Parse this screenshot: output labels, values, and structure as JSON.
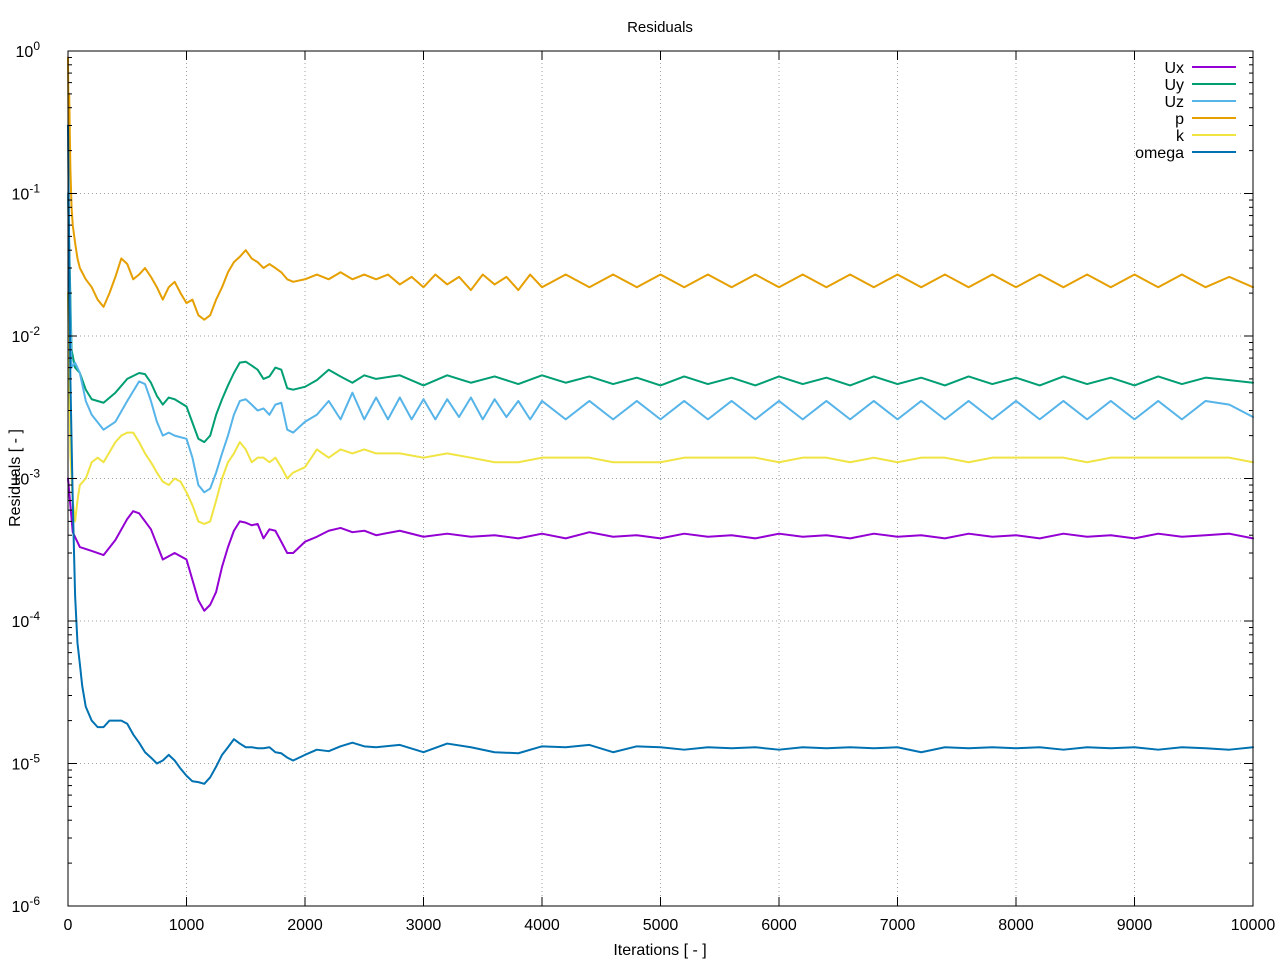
{
  "chart_data": {
    "type": "line",
    "title": "Residuals",
    "xlabel": "Iterations [ - ]",
    "ylabel": "Residuals [ - ]",
    "xlim": [
      0,
      10000
    ],
    "ylim": [
      1e-06,
      1
    ],
    "yscale": "log",
    "grid": true,
    "legend": "top-right",
    "x_ticks": [
      "0",
      "1000",
      "2000",
      "3000",
      "4000",
      "5000",
      "6000",
      "7000",
      "8000",
      "9000",
      "10000"
    ],
    "y_ticks": [
      {
        "base": "10",
        "exp": "0"
      },
      {
        "base": "10",
        "exp": "-1"
      },
      {
        "base": "10",
        "exp": "-2"
      },
      {
        "base": "10",
        "exp": "-3"
      },
      {
        "base": "10",
        "exp": "-4"
      },
      {
        "base": "10",
        "exp": "-5"
      },
      {
        "base": "10",
        "exp": "-6"
      }
    ],
    "series": [
      {
        "name": "Ux",
        "color": "#9400d3",
        "x": [
          0,
          40,
          100,
          200,
          300,
          400,
          500,
          550,
          600,
          700,
          800,
          900,
          1000,
          1100,
          1150,
          1200,
          1250,
          1300,
          1350,
          1400,
          1450,
          1500,
          1550,
          1600,
          1650,
          1700,
          1750,
          1800,
          1850,
          1900,
          2000,
          2100,
          2200,
          2300,
          2400,
          2500,
          2600,
          2800,
          3000,
          3200,
          3400,
          3600,
          3800,
          4000,
          4200,
          4400,
          4600,
          4800,
          5000,
          5200,
          5400,
          5600,
          5800,
          6000,
          6200,
          6400,
          6600,
          6800,
          7000,
          7200,
          7400,
          7600,
          7800,
          8000,
          8200,
          8400,
          8600,
          8800,
          9000,
          9200,
          9400,
          9600,
          9800,
          10000
        ],
        "y": [
          0.001,
          0.00042,
          0.00033,
          0.00031,
          0.00029,
          0.00037,
          0.00052,
          0.00059,
          0.00057,
          0.00044,
          0.00027,
          0.0003,
          0.00027,
          0.00014,
          0.000118,
          0.00013,
          0.00016,
          0.00024,
          0.00033,
          0.00043,
          0.0005,
          0.00049,
          0.00047,
          0.00048,
          0.00038,
          0.00044,
          0.00043,
          0.00036,
          0.0003,
          0.0003,
          0.00036,
          0.00039,
          0.00043,
          0.00045,
          0.00042,
          0.00043,
          0.0004,
          0.00043,
          0.00039,
          0.00041,
          0.00039,
          0.0004,
          0.00038,
          0.00041,
          0.00038,
          0.00042,
          0.00039,
          0.0004,
          0.00038,
          0.00041,
          0.00039,
          0.0004,
          0.00038,
          0.00041,
          0.00039,
          0.0004,
          0.00038,
          0.00041,
          0.00039,
          0.0004,
          0.00038,
          0.00041,
          0.00039,
          0.0004,
          0.00038,
          0.00041,
          0.00039,
          0.0004,
          0.00038,
          0.00041,
          0.00039,
          0.0004,
          0.00041,
          0.00038
        ]
      },
      {
        "name": "Uy",
        "color": "#009e73",
        "x": [
          0,
          30,
          60,
          100,
          150,
          200,
          300,
          400,
          500,
          600,
          650,
          700,
          750,
          800,
          850,
          900,
          1000,
          1100,
          1150,
          1200,
          1250,
          1300,
          1350,
          1400,
          1450,
          1500,
          1550,
          1600,
          1650,
          1700,
          1750,
          1800,
          1850,
          1900,
          2000,
          2100,
          2200,
          2300,
          2400,
          2500,
          2600,
          2800,
          3000,
          3200,
          3400,
          3600,
          3800,
          4000,
          4200,
          4400,
          4600,
          4800,
          5000,
          5200,
          5400,
          5600,
          5800,
          6000,
          6200,
          6400,
          6600,
          6800,
          7000,
          7200,
          7400,
          7600,
          7800,
          8000,
          8200,
          8400,
          8600,
          8800,
          9000,
          9200,
          9400,
          9600,
          9800,
          10000
        ],
        "y": [
          0.1,
          0.008,
          0.006,
          0.0055,
          0.0042,
          0.0036,
          0.0034,
          0.004,
          0.005,
          0.0055,
          0.0054,
          0.0047,
          0.0038,
          0.0033,
          0.0037,
          0.0036,
          0.0032,
          0.0019,
          0.0018,
          0.002,
          0.0028,
          0.0036,
          0.0045,
          0.0055,
          0.0065,
          0.0066,
          0.0062,
          0.0058,
          0.005,
          0.0052,
          0.006,
          0.0058,
          0.0043,
          0.0042,
          0.0044,
          0.0049,
          0.0058,
          0.0052,
          0.0047,
          0.0053,
          0.005,
          0.0053,
          0.0045,
          0.0053,
          0.0047,
          0.0052,
          0.0046,
          0.0053,
          0.0047,
          0.0052,
          0.0046,
          0.0051,
          0.0045,
          0.0052,
          0.0046,
          0.0051,
          0.0045,
          0.0052,
          0.0046,
          0.0051,
          0.0045,
          0.0052,
          0.0046,
          0.0051,
          0.0045,
          0.0052,
          0.0046,
          0.0051,
          0.0045,
          0.0052,
          0.0046,
          0.0051,
          0.0045,
          0.0052,
          0.0046,
          0.0051,
          0.0049,
          0.0047
        ]
      },
      {
        "name": "Uz",
        "color": "#56b4e9",
        "x": [
          0,
          30,
          60,
          100,
          150,
          200,
          300,
          400,
          500,
          600,
          650,
          700,
          750,
          800,
          850,
          900,
          1000,
          1050,
          1100,
          1150,
          1200,
          1250,
          1300,
          1350,
          1400,
          1450,
          1500,
          1550,
          1600,
          1650,
          1700,
          1750,
          1800,
          1850,
          1900,
          2000,
          2100,
          2200,
          2300,
          2400,
          2500,
          2600,
          2700,
          2800,
          2900,
          3000,
          3100,
          3200,
          3300,
          3400,
          3500,
          3600,
          3700,
          3800,
          3900,
          4000,
          4200,
          4400,
          4600,
          4800,
          5000,
          5200,
          5400,
          5600,
          5800,
          6000,
          6200,
          6400,
          6600,
          6800,
          7000,
          7200,
          7400,
          7600,
          7800,
          8000,
          8200,
          8400,
          8600,
          8800,
          9000,
          9200,
          9400,
          9600,
          9800,
          10000
        ],
        "y": [
          0.1,
          0.006,
          0.0065,
          0.0055,
          0.0035,
          0.0028,
          0.0022,
          0.0025,
          0.0035,
          0.0048,
          0.0046,
          0.0035,
          0.0025,
          0.002,
          0.0021,
          0.002,
          0.0019,
          0.0014,
          0.0009,
          0.0008,
          0.00085,
          0.0011,
          0.0015,
          0.002,
          0.0028,
          0.0035,
          0.0036,
          0.0033,
          0.003,
          0.0031,
          0.0028,
          0.0033,
          0.0034,
          0.0022,
          0.0021,
          0.0025,
          0.0028,
          0.0035,
          0.0026,
          0.004,
          0.0026,
          0.0037,
          0.0026,
          0.0037,
          0.0026,
          0.0036,
          0.0026,
          0.0036,
          0.0027,
          0.0037,
          0.0026,
          0.0036,
          0.0027,
          0.0035,
          0.0026,
          0.0035,
          0.0026,
          0.0035,
          0.0026,
          0.0035,
          0.0026,
          0.0035,
          0.0026,
          0.0035,
          0.0026,
          0.0035,
          0.0026,
          0.0035,
          0.0026,
          0.0035,
          0.0026,
          0.0035,
          0.0026,
          0.0035,
          0.0026,
          0.0035,
          0.0026,
          0.0035,
          0.0026,
          0.0035,
          0.0026,
          0.0035,
          0.0026,
          0.0035,
          0.0033,
          0.0027
        ]
      },
      {
        "name": "p",
        "color": "#e69f00",
        "x": [
          0,
          5,
          10,
          20,
          30,
          40,
          60,
          80,
          100,
          150,
          200,
          250,
          300,
          350,
          400,
          450,
          500,
          550,
          600,
          650,
          700,
          750,
          800,
          850,
          900,
          950,
          1000,
          1050,
          1100,
          1150,
          1200,
          1250,
          1300,
          1350,
          1400,
          1450,
          1500,
          1550,
          1600,
          1650,
          1700,
          1750,
          1800,
          1850,
          1900,
          2000,
          2100,
          2200,
          2300,
          2400,
          2500,
          2600,
          2700,
          2800,
          2900,
          3000,
          3100,
          3200,
          3300,
          3400,
          3500,
          3600,
          3700,
          3800,
          3900,
          4000,
          4200,
          4400,
          4600,
          4800,
          5000,
          5200,
          5400,
          5600,
          5800,
          6000,
          6200,
          6400,
          6600,
          6800,
          7000,
          7200,
          7400,
          7600,
          7800,
          8000,
          8200,
          8400,
          8600,
          8800,
          9000,
          9200,
          9400,
          9600,
          9800,
          10000
        ],
        "y": [
          0.9,
          0.3,
          0.5,
          0.15,
          0.08,
          0.06,
          0.045,
          0.035,
          0.03,
          0.025,
          0.022,
          0.018,
          0.016,
          0.02,
          0.026,
          0.035,
          0.032,
          0.025,
          0.027,
          0.03,
          0.026,
          0.022,
          0.018,
          0.022,
          0.024,
          0.02,
          0.017,
          0.018,
          0.014,
          0.013,
          0.014,
          0.018,
          0.022,
          0.028,
          0.033,
          0.036,
          0.04,
          0.035,
          0.033,
          0.03,
          0.032,
          0.03,
          0.028,
          0.025,
          0.024,
          0.025,
          0.027,
          0.025,
          0.028,
          0.025,
          0.027,
          0.025,
          0.027,
          0.023,
          0.026,
          0.022,
          0.027,
          0.023,
          0.026,
          0.021,
          0.027,
          0.023,
          0.026,
          0.021,
          0.027,
          0.022,
          0.027,
          0.022,
          0.027,
          0.022,
          0.027,
          0.022,
          0.027,
          0.022,
          0.027,
          0.022,
          0.027,
          0.022,
          0.027,
          0.022,
          0.027,
          0.022,
          0.027,
          0.022,
          0.027,
          0.022,
          0.027,
          0.022,
          0.027,
          0.022,
          0.027,
          0.022,
          0.027,
          0.022,
          0.026,
          0.022
        ]
      },
      {
        "name": "k",
        "color": "#f0e442",
        "x": [
          0,
          20,
          40,
          60,
          80,
          100,
          150,
          200,
          250,
          300,
          400,
          450,
          500,
          550,
          600,
          650,
          700,
          750,
          800,
          850,
          900,
          950,
          1000,
          1050,
          1100,
          1150,
          1200,
          1250,
          1300,
          1350,
          1400,
          1450,
          1500,
          1550,
          1600,
          1650,
          1700,
          1750,
          1800,
          1850,
          1900,
          2000,
          2100,
          2200,
          2300,
          2400,
          2500,
          2600,
          2800,
          3000,
          3200,
          3400,
          3600,
          3800,
          4000,
          4200,
          4400,
          4600,
          4800,
          5000,
          5200,
          5400,
          5600,
          5800,
          6000,
          6200,
          6400,
          6600,
          6800,
          7000,
          7200,
          7400,
          7600,
          7800,
          8000,
          8200,
          8400,
          8600,
          8800,
          9000,
          9200,
          9400,
          9600,
          9800,
          10000
        ],
        "y": [
          0.02,
          0.0015,
          0.0007,
          0.0005,
          0.0007,
          0.0009,
          0.001,
          0.0013,
          0.0014,
          0.0013,
          0.0018,
          0.002,
          0.0021,
          0.0021,
          0.0018,
          0.0015,
          0.0013,
          0.0011,
          0.00095,
          0.0009,
          0.001,
          0.00095,
          0.0008,
          0.00065,
          0.0005,
          0.00048,
          0.0005,
          0.0007,
          0.001,
          0.0013,
          0.0015,
          0.0018,
          0.0016,
          0.0013,
          0.0014,
          0.0014,
          0.0013,
          0.0014,
          0.0012,
          0.001,
          0.0011,
          0.0012,
          0.0016,
          0.0014,
          0.0016,
          0.0015,
          0.0016,
          0.0015,
          0.0015,
          0.0014,
          0.0015,
          0.0014,
          0.0013,
          0.0013,
          0.0014,
          0.0014,
          0.0014,
          0.0013,
          0.0013,
          0.0013,
          0.0014,
          0.0014,
          0.0014,
          0.0014,
          0.0013,
          0.0014,
          0.0014,
          0.0013,
          0.0014,
          0.0013,
          0.0014,
          0.0014,
          0.0013,
          0.0014,
          0.0014,
          0.0014,
          0.0014,
          0.0013,
          0.0014,
          0.0014,
          0.0014,
          0.0014,
          0.0014,
          0.0014,
          0.0013
        ]
      },
      {
        "name": "omega",
        "color": "#0072b2",
        "x": [
          0,
          20,
          40,
          60,
          80,
          100,
          120,
          150,
          200,
          250,
          300,
          350,
          400,
          450,
          500,
          550,
          600,
          650,
          700,
          750,
          800,
          850,
          900,
          950,
          1000,
          1050,
          1100,
          1150,
          1200,
          1250,
          1300,
          1350,
          1400,
          1450,
          1500,
          1550,
          1600,
          1650,
          1700,
          1750,
          1800,
          1850,
          1900,
          2000,
          2100,
          2200,
          2300,
          2400,
          2500,
          2600,
          2800,
          3000,
          3200,
          3400,
          3600,
          3800,
          4000,
          4200,
          4400,
          4600,
          4800,
          5000,
          5200,
          5400,
          5600,
          5800,
          6000,
          6200,
          6400,
          6600,
          6800,
          7000,
          7200,
          7400,
          7600,
          7800,
          8000,
          8200,
          8400,
          8600,
          8800,
          9000,
          9200,
          9400,
          9600,
          9800,
          10000
        ],
        "y": [
          0.3,
          0.005,
          0.0007,
          0.00015,
          7e-05,
          5e-05,
          3.5e-05,
          2.5e-05,
          2e-05,
          1.8e-05,
          1.8e-05,
          2e-05,
          2e-05,
          2e-05,
          1.9e-05,
          1.6e-05,
          1.4e-05,
          1.2e-05,
          1.1e-05,
          1e-05,
          1.05e-05,
          1.15e-05,
          1.05e-05,
          9.2e-06,
          8.2e-06,
          7.5e-06,
          7.4e-06,
          7.2e-06,
          8e-06,
          9.5e-06,
          1.15e-05,
          1.3e-05,
          1.48e-05,
          1.38e-05,
          1.3e-05,
          1.3e-05,
          1.28e-05,
          1.28e-05,
          1.3e-05,
          1.2e-05,
          1.18e-05,
          1.1e-05,
          1.05e-05,
          1.15e-05,
          1.25e-05,
          1.22e-05,
          1.32e-05,
          1.4e-05,
          1.32e-05,
          1.3e-05,
          1.35e-05,
          1.2e-05,
          1.38e-05,
          1.3e-05,
          1.2e-05,
          1.18e-05,
          1.32e-05,
          1.3e-05,
          1.35e-05,
          1.2e-05,
          1.32e-05,
          1.3e-05,
          1.25e-05,
          1.3e-05,
          1.28e-05,
          1.3e-05,
          1.25e-05,
          1.3e-05,
          1.28e-05,
          1.3e-05,
          1.28e-05,
          1.3e-05,
          1.2e-05,
          1.3e-05,
          1.28e-05,
          1.3e-05,
          1.28e-05,
          1.3e-05,
          1.25e-05,
          1.3e-05,
          1.28e-05,
          1.3e-05,
          1.25e-05,
          1.3e-05,
          1.28e-05,
          1.25e-05,
          1.3e-05
        ]
      }
    ]
  }
}
